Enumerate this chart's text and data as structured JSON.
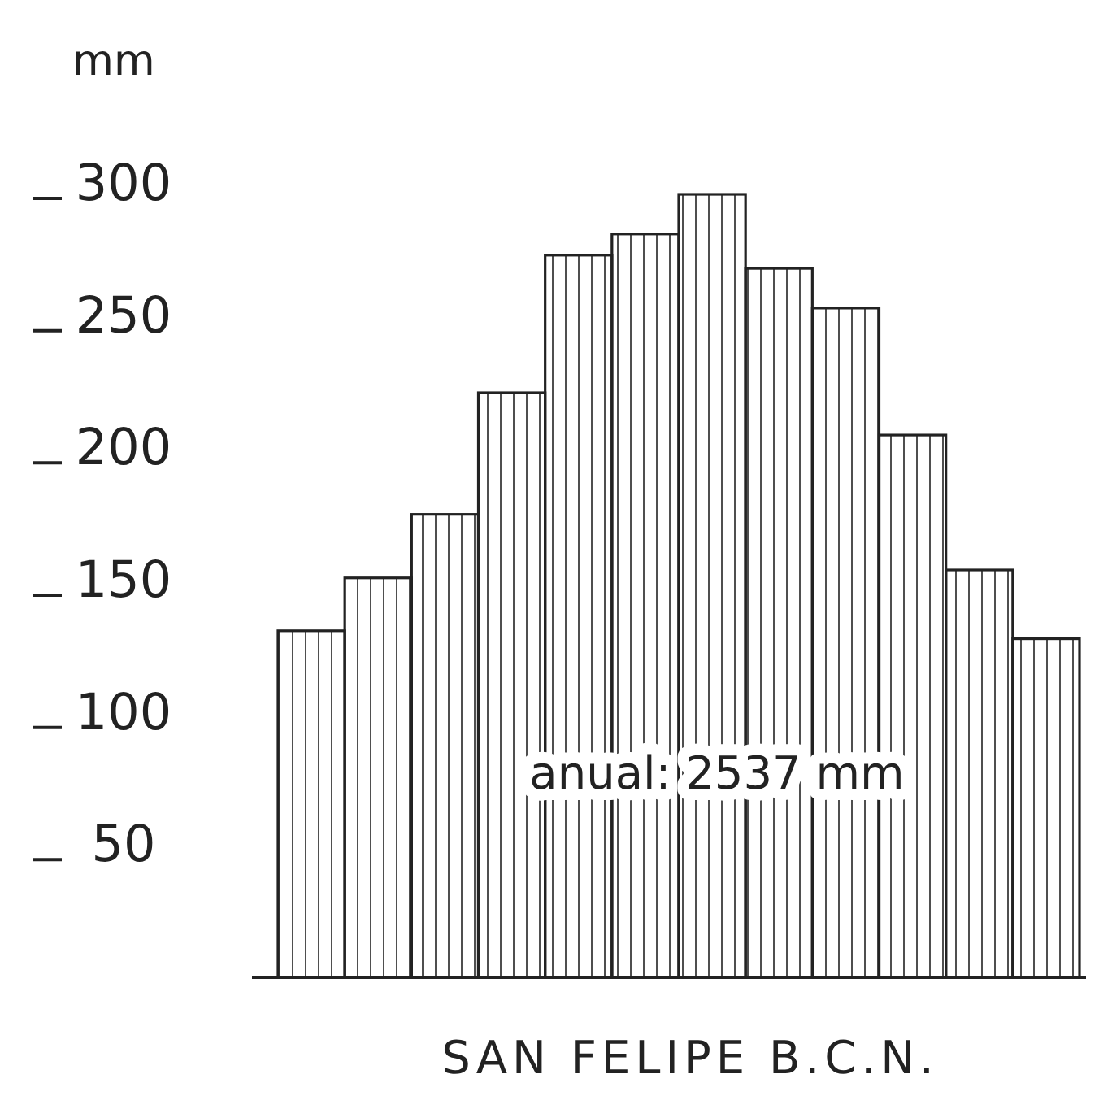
{
  "chart_data": {
    "type": "bar",
    "ylabel": "mm",
    "xlabel": "SAN FELIPE B.C.N.",
    "categories": [
      null,
      null,
      null,
      null,
      null,
      null,
      null,
      null,
      null,
      null,
      null,
      null
    ],
    "values": [
      131,
      151,
      175,
      221,
      273,
      281,
      296,
      268,
      253,
      205,
      154,
      128
    ],
    "color": "#222222",
    "ylim": [
      0,
      300
    ],
    "yticks": [
      {
        "value": 50,
        "label": "50"
      },
      {
        "value": 100,
        "label": "100"
      },
      {
        "value": 150,
        "label": "150"
      },
      {
        "value": 200,
        "label": "200"
      },
      {
        "value": 250,
        "label": "250"
      },
      {
        "value": 300,
        "label": "300"
      }
    ],
    "grid": false,
    "tick_labels": "y",
    "annotations": [
      "anual: 2537 mm"
    ]
  }
}
